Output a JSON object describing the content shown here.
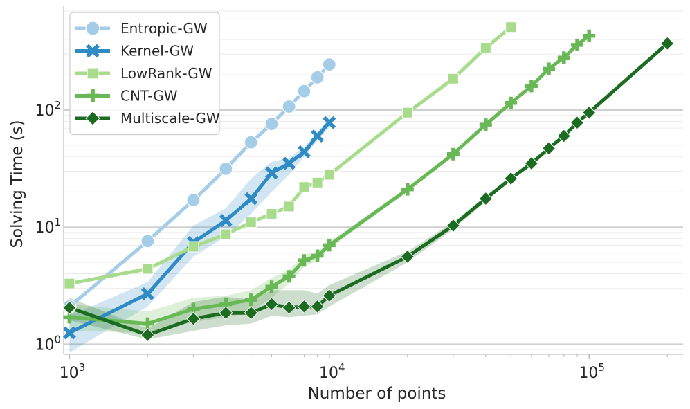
{
  "chart_data": {
    "type": "line",
    "xlabel": "Number of points",
    "ylabel": "Solving Time (s)",
    "xscale": "log",
    "yscale": "log",
    "xlim": [
      950,
      230000
    ],
    "ylim": [
      0.82,
      780
    ],
    "x_ticks": [
      {
        "value": 1000,
        "base": "10",
        "exp": "3"
      },
      {
        "value": 10000,
        "base": "10",
        "exp": "4"
      },
      {
        "value": 100000,
        "base": "10",
        "exp": "5"
      }
    ],
    "y_ticks": [
      {
        "value": 1,
        "base": "10",
        "exp": "0"
      },
      {
        "value": 10,
        "base": "10",
        "exp": "1"
      },
      {
        "value": 100,
        "base": "10",
        "exp": "2"
      }
    ],
    "grid": true,
    "legend_position": "top-left",
    "series": [
      {
        "name": "Entropic-GW",
        "color": "#a6cde8",
        "marker": "circle",
        "x": [
          1000,
          2000,
          3000,
          4000,
          5000,
          6000,
          7000,
          8000,
          9000,
          10000
        ],
        "y": [
          2.1,
          7.6,
          17,
          31.5,
          53,
          76,
          107,
          145,
          190,
          245
        ]
      },
      {
        "name": "Kernel-GW",
        "color": "#2e8bc4",
        "marker": "x",
        "x": [
          1000,
          2000,
          3000,
          4000,
          5000,
          6000,
          7000,
          8000,
          9000,
          10000
        ],
        "y": [
          1.25,
          2.7,
          7.4,
          11.4,
          17.5,
          29,
          35,
          44,
          60,
          78
        ],
        "band_low": [
          0.85,
          2.1,
          5.6,
          8.3,
          13,
          20,
          28,
          40,
          55,
          72
        ],
        "band_high": [
          1.75,
          3.4,
          10.3,
          14.5,
          26,
          36,
          39,
          48,
          65,
          84
        ]
      },
      {
        "name": "LowRank-GW",
        "color": "#a9db8d",
        "marker": "square",
        "x": [
          1000,
          2000,
          3000,
          4000,
          5000,
          6000,
          7000,
          8000,
          9000,
          10000,
          20000,
          30000,
          40000,
          50000
        ],
        "y": [
          3.3,
          4.4,
          6.8,
          8.7,
          11,
          13,
          15,
          22,
          24,
          28,
          95,
          185,
          340,
          510
        ]
      },
      {
        "name": "CNT-GW",
        "color": "#68b856",
        "marker": "plus",
        "x": [
          1000,
          2000,
          3000,
          4000,
          5000,
          6000,
          7000,
          8000,
          9000,
          10000,
          20000,
          30000,
          40000,
          50000,
          60000,
          70000,
          80000,
          90000,
          100000
        ],
        "y": [
          1.7,
          1.5,
          2.0,
          2.2,
          2.4,
          3.1,
          3.8,
          5.2,
          5.7,
          7.0,
          21,
          42,
          75,
          115,
          160,
          225,
          280,
          360,
          430
        ],
        "band_low": [
          1.3,
          1.25,
          1.55,
          1.7,
          1.9,
          2.5,
          3.3,
          4.6,
          5.2,
          6.5,
          20,
          40,
          72,
          110,
          155,
          215,
          270,
          345,
          415
        ],
        "band_high": [
          2.2,
          1.9,
          2.5,
          2.6,
          2.9,
          3.7,
          4.3,
          5.8,
          6.2,
          7.5,
          22,
          44,
          78,
          120,
          165,
          235,
          290,
          375,
          445
        ]
      },
      {
        "name": "Multiscale-GW",
        "color": "#1b6b21",
        "marker": "diamond",
        "x": [
          1000,
          2000,
          3000,
          4000,
          5000,
          6000,
          7000,
          8000,
          9000,
          10000,
          20000,
          30000,
          40000,
          50000,
          60000,
          70000,
          80000,
          90000,
          100000,
          200000
        ],
        "y": [
          2.05,
          1.2,
          1.65,
          1.85,
          1.85,
          2.2,
          2.05,
          2.1,
          2.1,
          2.6,
          5.6,
          10.3,
          17.5,
          26,
          35,
          47,
          60,
          78,
          95,
          370
        ],
        "band_low": [
          1.6,
          1.1,
          1.3,
          1.45,
          1.5,
          1.75,
          1.7,
          1.75,
          1.8,
          2.1,
          5.0,
          9.6,
          16.5,
          25,
          34,
          46,
          58,
          76,
          92,
          360
        ],
        "band_high": [
          2.5,
          1.35,
          2.3,
          2.55,
          2.4,
          2.9,
          2.9,
          2.9,
          2.7,
          3.2,
          6.2,
          11,
          18.5,
          27,
          36,
          48,
          62,
          80,
          98,
          380
        ]
      }
    ]
  }
}
